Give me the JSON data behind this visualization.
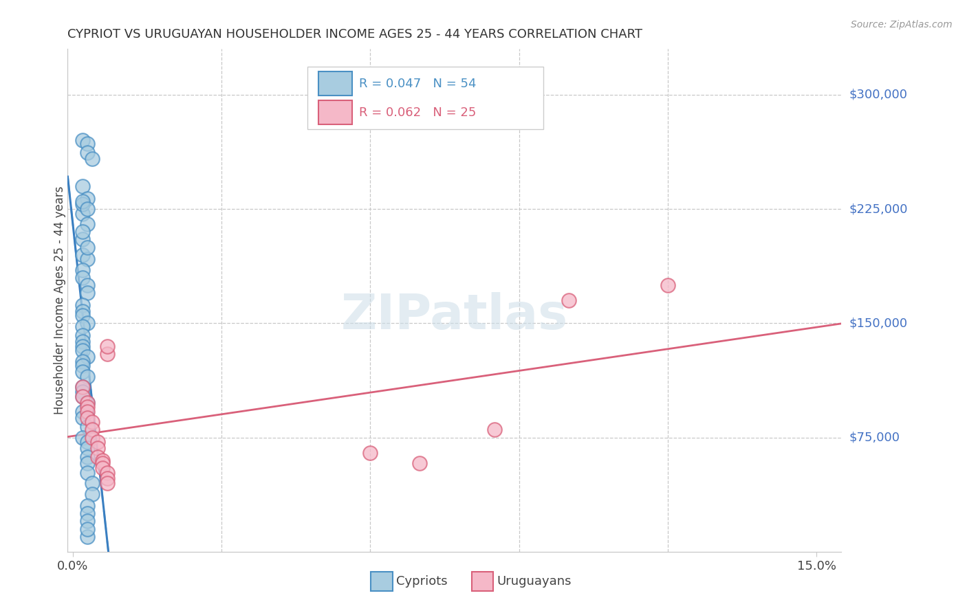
{
  "title": "CYPRIOT VS URUGUAYAN HOUSEHOLDER INCOME AGES 25 - 44 YEARS CORRELATION CHART",
  "source": "Source: ZipAtlas.com",
  "ylabel": "Householder Income Ages 25 - 44 years",
  "ytick_labels": [
    "$75,000",
    "$150,000",
    "$225,000",
    "$300,000"
  ],
  "ytick_values": [
    75000,
    150000,
    225000,
    300000
  ],
  "ymin": 0,
  "ymax": 330000,
  "xmin": -0.001,
  "xmax": 0.155,
  "cypriot_color": "#a8cce0",
  "cypriot_edge_color": "#4a90c4",
  "uruguayan_color": "#f5b8c8",
  "uruguayan_edge_color": "#d9607a",
  "cypriot_line_color": "#3a7fc1",
  "cypriot_dash_color": "#90bcd8",
  "uruguayan_line_color": "#d9607a",
  "background_color": "#ffffff",
  "grid_color": "#c8c8c8",
  "legend_blue_text": "#4a90c4",
  "legend_pink_text": "#d9607a",
  "watermark_color": "#ccdde8",
  "cypriot_x": [
    0.002,
    0.003,
    0.003,
    0.004,
    0.002,
    0.003,
    0.002,
    0.003,
    0.002,
    0.002,
    0.003,
    0.002,
    0.003,
    0.002,
    0.002,
    0.003,
    0.002,
    0.002,
    0.003,
    0.003,
    0.002,
    0.002,
    0.002,
    0.003,
    0.002,
    0.002,
    0.002,
    0.002,
    0.002,
    0.003,
    0.002,
    0.002,
    0.002,
    0.003,
    0.002,
    0.002,
    0.002,
    0.003,
    0.002,
    0.002,
    0.003,
    0.002,
    0.003,
    0.003,
    0.003,
    0.003,
    0.003,
    0.004,
    0.004,
    0.003,
    0.003,
    0.003,
    0.003,
    0.003
  ],
  "cypriot_y": [
    270000,
    268000,
    262000,
    258000,
    240000,
    232000,
    222000,
    215000,
    228000,
    230000,
    225000,
    195000,
    192000,
    205000,
    210000,
    200000,
    185000,
    180000,
    175000,
    170000,
    162000,
    158000,
    155000,
    150000,
    148000,
    142000,
    138000,
    135000,
    132000,
    128000,
    125000,
    122000,
    118000,
    115000,
    108000,
    105000,
    102000,
    98000,
    92000,
    88000,
    82000,
    75000,
    72000,
    68000,
    62000,
    58000,
    52000,
    45000,
    38000,
    30000,
    25000,
    10000,
    20000,
    15000
  ],
  "uruguayan_x": [
    0.002,
    0.002,
    0.003,
    0.003,
    0.003,
    0.003,
    0.004,
    0.004,
    0.004,
    0.005,
    0.005,
    0.005,
    0.006,
    0.006,
    0.006,
    0.007,
    0.007,
    0.007,
    0.007,
    0.007,
    0.06,
    0.07,
    0.085,
    0.1,
    0.12
  ],
  "uruguayan_y": [
    108000,
    102000,
    98000,
    95000,
    92000,
    88000,
    85000,
    80000,
    75000,
    72000,
    68000,
    62000,
    60000,
    58000,
    55000,
    52000,
    48000,
    45000,
    130000,
    135000,
    65000,
    58000,
    80000,
    165000,
    175000
  ]
}
